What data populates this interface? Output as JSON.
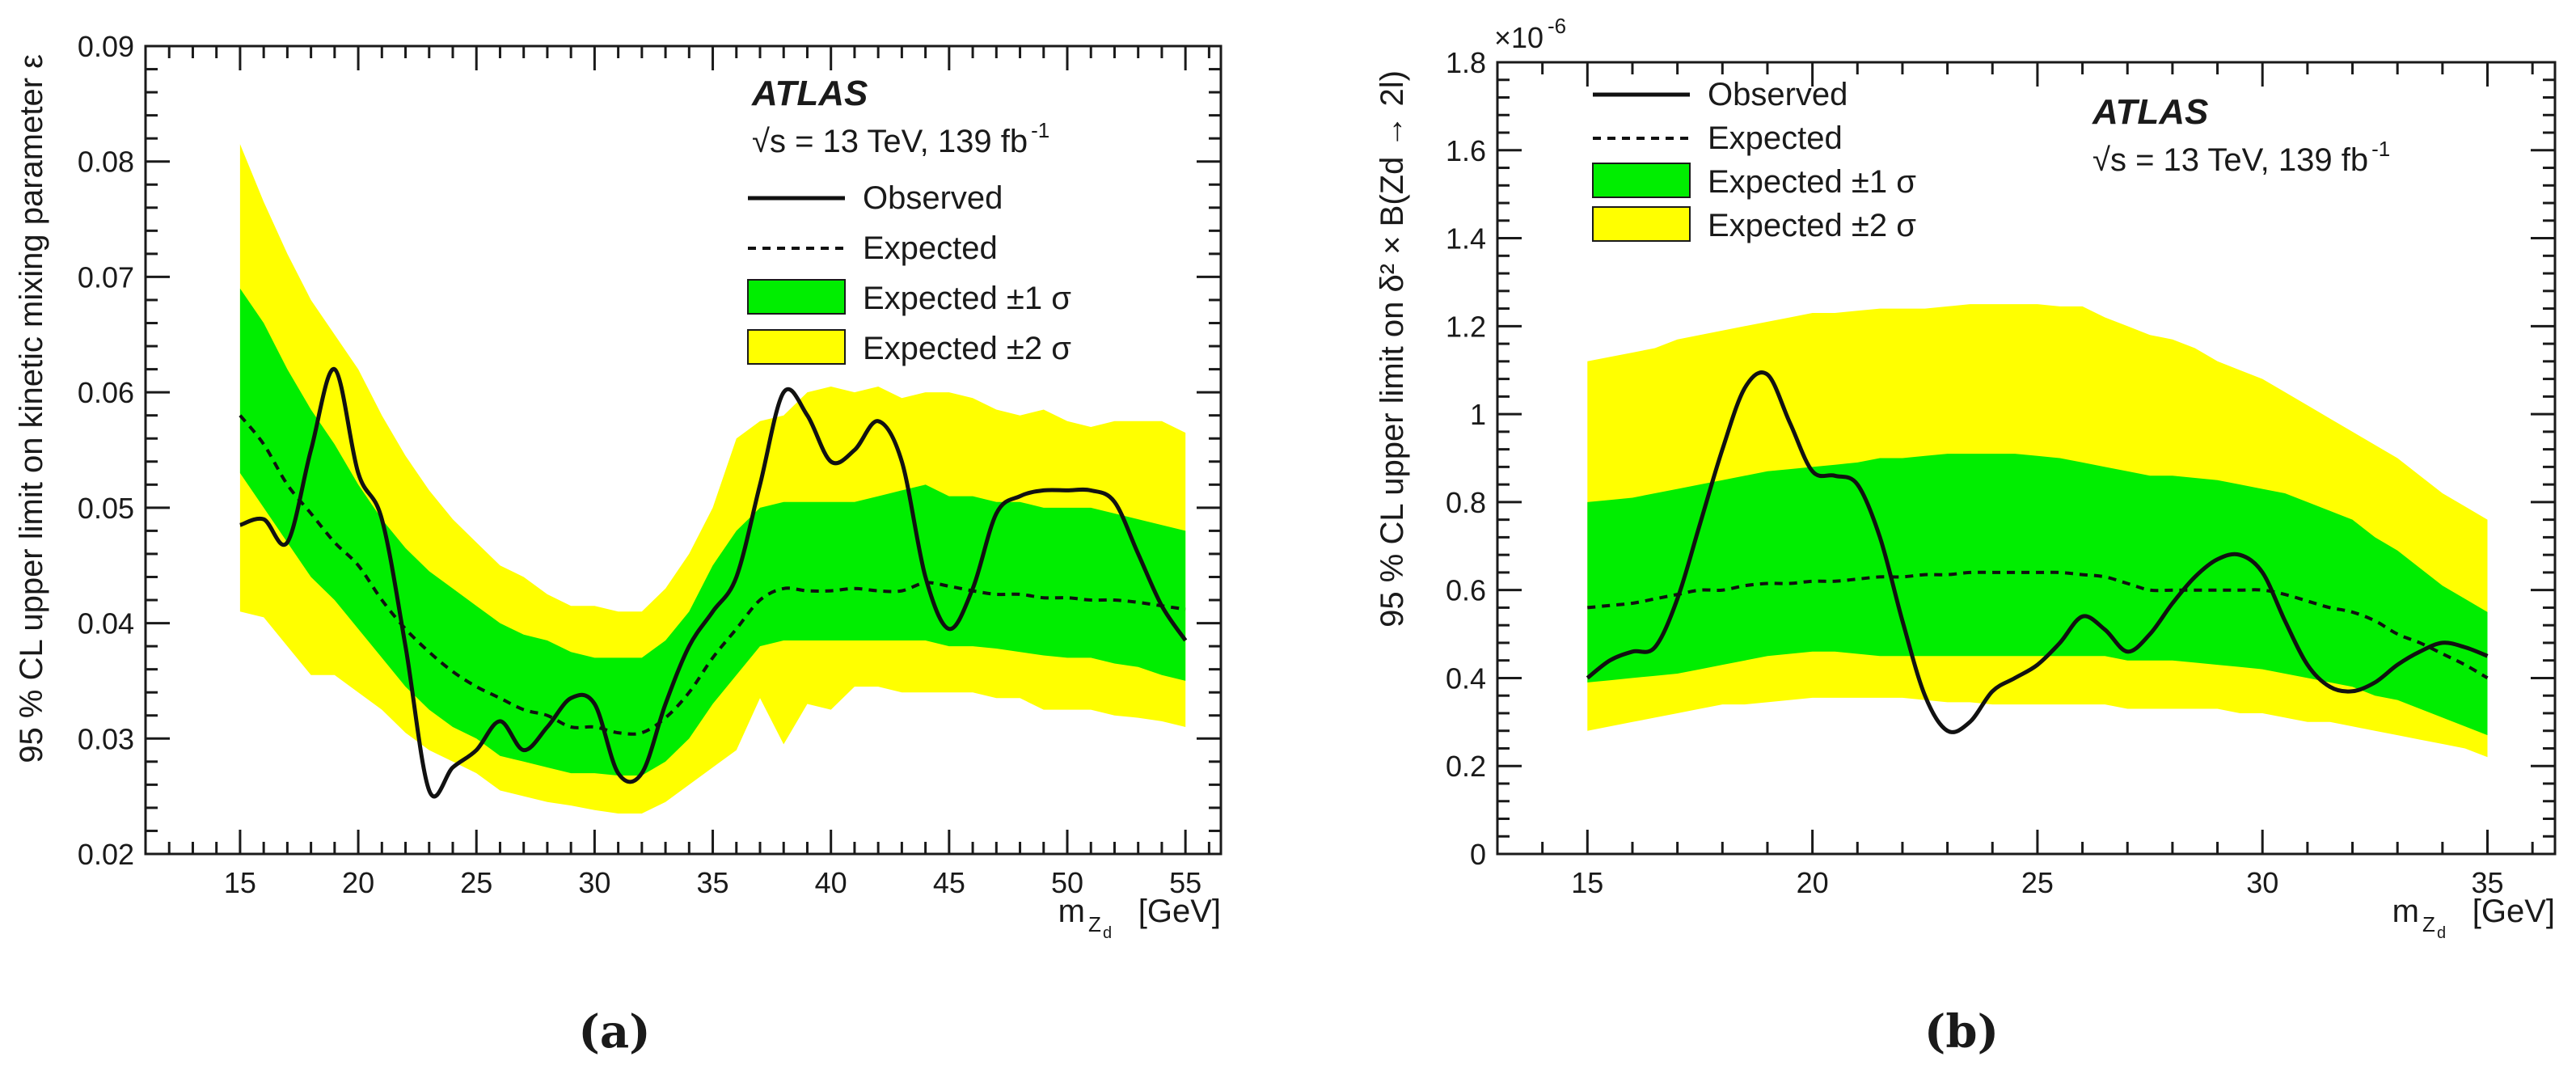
{
  "chart_data": [
    {
      "id": "a",
      "type": "line",
      "caption": "(a)",
      "atlas_label": "ATLAS",
      "energy_label": "√s = 13 TeV, 139 fb",
      "lumi_sup": "-1",
      "ylabel": "95 % CL upper limit on kinetic mixing parameter ε",
      "xlabel_main": "m",
      "xlabel_sub": "Z",
      "xlabel_subsub": "d",
      "xlabel_unit": "[GeV]",
      "xlim": [
        11,
        56.5
      ],
      "ylim": [
        0.02,
        0.09
      ],
      "xticks": [
        "15",
        "20",
        "25",
        "30",
        "35",
        "40",
        "45",
        "50",
        "55"
      ],
      "yticks": [
        "0.02",
        "0.03",
        "0.04",
        "0.05",
        "0.06",
        "0.07",
        "0.08",
        "0.09"
      ],
      "legend": [
        {
          "label": "Observed",
          "style": "solid"
        },
        {
          "label": "Expected",
          "style": "dashed"
        },
        {
          "label": "Expected ±1 σ",
          "style": "band1"
        },
        {
          "label": "Expected ±2 σ",
          "style": "band2"
        }
      ],
      "colors": {
        "band1": "#00ee00",
        "band2": "#ffff00",
        "line": "#111111"
      },
      "x": [
        15,
        16,
        17,
        18,
        19,
        20,
        21,
        22,
        23,
        24,
        25,
        26,
        27,
        28,
        29,
        30,
        31,
        32,
        33,
        34,
        35,
        36,
        37,
        38,
        39,
        40,
        41,
        42,
        43,
        44,
        45,
        46,
        47,
        48,
        49,
        50,
        51,
        52,
        53,
        54,
        55
      ],
      "observed": [
        0.0485,
        0.049,
        0.047,
        0.055,
        0.062,
        0.053,
        0.049,
        0.038,
        0.0255,
        0.0275,
        0.029,
        0.0315,
        0.029,
        0.031,
        0.0335,
        0.033,
        0.027,
        0.027,
        0.033,
        0.038,
        0.041,
        0.044,
        0.052,
        0.06,
        0.058,
        0.054,
        0.055,
        0.0575,
        0.054,
        0.044,
        0.0395,
        0.043,
        0.0495,
        0.051,
        0.0515,
        0.0515,
        0.0515,
        0.0505,
        0.046,
        0.0415,
        0.0385
      ],
      "expected": [
        0.058,
        0.0555,
        0.052,
        0.0495,
        0.047,
        0.045,
        0.042,
        0.0395,
        0.0375,
        0.0358,
        0.0345,
        0.0335,
        0.0325,
        0.032,
        0.031,
        0.031,
        0.0305,
        0.0305,
        0.0318,
        0.034,
        0.037,
        0.0395,
        0.042,
        0.043,
        0.0428,
        0.0428,
        0.043,
        0.0428,
        0.0428,
        0.0435,
        0.0432,
        0.0428,
        0.0425,
        0.0425,
        0.0422,
        0.0422,
        0.042,
        0.042,
        0.0418,
        0.0415,
        0.0412
      ],
      "band1_low": [
        0.053,
        0.05,
        0.047,
        0.044,
        0.042,
        0.0395,
        0.037,
        0.0345,
        0.0325,
        0.031,
        0.03,
        0.0285,
        0.028,
        0.0275,
        0.027,
        0.027,
        0.0268,
        0.0268,
        0.028,
        0.03,
        0.033,
        0.0355,
        0.038,
        0.0385,
        0.0385,
        0.0385,
        0.0385,
        0.0385,
        0.0385,
        0.0385,
        0.038,
        0.038,
        0.0378,
        0.0375,
        0.0372,
        0.037,
        0.037,
        0.0365,
        0.0362,
        0.0355,
        0.035
      ],
      "band1_high": [
        0.069,
        0.066,
        0.062,
        0.0585,
        0.0555,
        0.052,
        0.049,
        0.0465,
        0.0445,
        0.043,
        0.0415,
        0.04,
        0.039,
        0.0385,
        0.0375,
        0.037,
        0.037,
        0.037,
        0.0385,
        0.041,
        0.045,
        0.048,
        0.05,
        0.0505,
        0.0505,
        0.0505,
        0.0505,
        0.051,
        0.0515,
        0.052,
        0.051,
        0.051,
        0.0505,
        0.0505,
        0.05,
        0.05,
        0.05,
        0.0495,
        0.049,
        0.0485,
        0.048
      ],
      "band2_low": [
        0.041,
        0.0405,
        0.038,
        0.0355,
        0.0355,
        0.034,
        0.0325,
        0.0305,
        0.029,
        0.028,
        0.027,
        0.0255,
        0.025,
        0.0245,
        0.0242,
        0.0238,
        0.0235,
        0.0235,
        0.0245,
        0.026,
        0.0275,
        0.029,
        0.0335,
        0.0295,
        0.033,
        0.0325,
        0.0345,
        0.0345,
        0.034,
        0.034,
        0.034,
        0.034,
        0.0335,
        0.0335,
        0.0325,
        0.0325,
        0.0325,
        0.032,
        0.0318,
        0.0315,
        0.031
      ],
      "band2_high": [
        0.0815,
        0.0765,
        0.072,
        0.068,
        0.065,
        0.062,
        0.058,
        0.0545,
        0.0515,
        0.049,
        0.047,
        0.045,
        0.044,
        0.0425,
        0.0415,
        0.0415,
        0.041,
        0.041,
        0.043,
        0.046,
        0.05,
        0.056,
        0.0575,
        0.058,
        0.06,
        0.0605,
        0.06,
        0.0605,
        0.0595,
        0.06,
        0.06,
        0.0595,
        0.0585,
        0.058,
        0.0585,
        0.0575,
        0.057,
        0.0575,
        0.0575,
        0.0575,
        0.0565
      ]
    },
    {
      "id": "b",
      "type": "line",
      "caption": "(b)",
      "atlas_label": "ATLAS",
      "energy_label": "√s = 13 TeV, 139 fb",
      "lumi_sup": "-1",
      "ylabel": "95 % CL upper limit on δ² × B(Zd → 2l)",
      "y_multiplier": "×10",
      "y_multiplier_exp": "-6",
      "xlabel_main": "m",
      "xlabel_sub": "Z",
      "xlabel_subsub": "d",
      "xlabel_unit": "[GeV]",
      "xlim": [
        13,
        36.5
      ],
      "ylim": [
        0,
        1.8
      ],
      "xticks": [
        "15",
        "20",
        "25",
        "30",
        "35"
      ],
      "yticks": [
        "0",
        "0.2",
        "0.4",
        "0.6",
        "0.8",
        "1",
        "1.2",
        "1.4",
        "1.6",
        "1.8"
      ],
      "legend": [
        {
          "label": "Observed",
          "style": "solid"
        },
        {
          "label": "Expected",
          "style": "dashed"
        },
        {
          "label": "Expected ±1 σ",
          "style": "band1"
        },
        {
          "label": "Expected ±2 σ",
          "style": "band2"
        }
      ],
      "colors": {
        "band1": "#00ee00",
        "band2": "#ffff00",
        "line": "#111111"
      },
      "x": [
        15,
        15.5,
        16,
        16.5,
        17,
        17.5,
        18,
        18.5,
        19,
        19.5,
        20,
        20.5,
        21,
        21.5,
        22,
        22.5,
        23,
        23.5,
        24,
        24.5,
        25,
        25.5,
        26,
        26.5,
        27,
        27.5,
        28,
        28.5,
        29,
        29.5,
        30,
        30.5,
        31,
        31.5,
        32,
        32.5,
        33,
        33.5,
        34,
        34.5,
        35
      ],
      "observed": [
        0.4,
        0.44,
        0.46,
        0.47,
        0.58,
        0.75,
        0.92,
        1.06,
        1.09,
        0.98,
        0.87,
        0.86,
        0.84,
        0.72,
        0.53,
        0.36,
        0.28,
        0.3,
        0.37,
        0.4,
        0.43,
        0.48,
        0.54,
        0.51,
        0.46,
        0.5,
        0.57,
        0.63,
        0.67,
        0.68,
        0.64,
        0.53,
        0.43,
        0.38,
        0.37,
        0.39,
        0.43,
        0.46,
        0.48,
        0.47,
        0.45
      ],
      "expected": [
        0.56,
        0.565,
        0.57,
        0.58,
        0.59,
        0.6,
        0.6,
        0.61,
        0.615,
        0.615,
        0.62,
        0.62,
        0.625,
        0.63,
        0.63,
        0.635,
        0.635,
        0.64,
        0.64,
        0.64,
        0.64,
        0.64,
        0.635,
        0.63,
        0.615,
        0.6,
        0.6,
        0.6,
        0.6,
        0.6,
        0.6,
        0.59,
        0.575,
        0.56,
        0.55,
        0.53,
        0.5,
        0.48,
        0.455,
        0.43,
        0.4
      ],
      "band1_low": [
        0.39,
        0.395,
        0.4,
        0.405,
        0.41,
        0.42,
        0.43,
        0.44,
        0.45,
        0.455,
        0.46,
        0.46,
        0.455,
        0.45,
        0.45,
        0.45,
        0.45,
        0.45,
        0.45,
        0.45,
        0.45,
        0.45,
        0.45,
        0.45,
        0.44,
        0.44,
        0.44,
        0.435,
        0.43,
        0.425,
        0.42,
        0.41,
        0.4,
        0.39,
        0.38,
        0.36,
        0.35,
        0.33,
        0.31,
        0.29,
        0.27
      ],
      "band1_high": [
        0.8,
        0.805,
        0.81,
        0.82,
        0.83,
        0.84,
        0.85,
        0.86,
        0.87,
        0.875,
        0.88,
        0.885,
        0.89,
        0.9,
        0.9,
        0.905,
        0.91,
        0.91,
        0.91,
        0.91,
        0.905,
        0.9,
        0.89,
        0.88,
        0.87,
        0.86,
        0.86,
        0.855,
        0.85,
        0.84,
        0.83,
        0.82,
        0.8,
        0.78,
        0.76,
        0.72,
        0.69,
        0.65,
        0.61,
        0.58,
        0.55
      ],
      "band2_low": [
        0.28,
        0.29,
        0.3,
        0.31,
        0.32,
        0.33,
        0.34,
        0.34,
        0.345,
        0.35,
        0.355,
        0.355,
        0.355,
        0.355,
        0.355,
        0.35,
        0.345,
        0.345,
        0.34,
        0.34,
        0.34,
        0.34,
        0.34,
        0.34,
        0.33,
        0.33,
        0.33,
        0.33,
        0.33,
        0.32,
        0.32,
        0.31,
        0.3,
        0.3,
        0.29,
        0.28,
        0.27,
        0.26,
        0.25,
        0.24,
        0.22
      ],
      "band2_high": [
        1.12,
        1.13,
        1.14,
        1.15,
        1.17,
        1.18,
        1.19,
        1.2,
        1.21,
        1.22,
        1.23,
        1.23,
        1.235,
        1.24,
        1.24,
        1.24,
        1.245,
        1.25,
        1.25,
        1.25,
        1.25,
        1.245,
        1.245,
        1.22,
        1.2,
        1.18,
        1.17,
        1.15,
        1.12,
        1.1,
        1.08,
        1.05,
        1.02,
        0.99,
        0.96,
        0.93,
        0.9,
        0.86,
        0.82,
        0.79,
        0.76
      ]
    }
  ]
}
